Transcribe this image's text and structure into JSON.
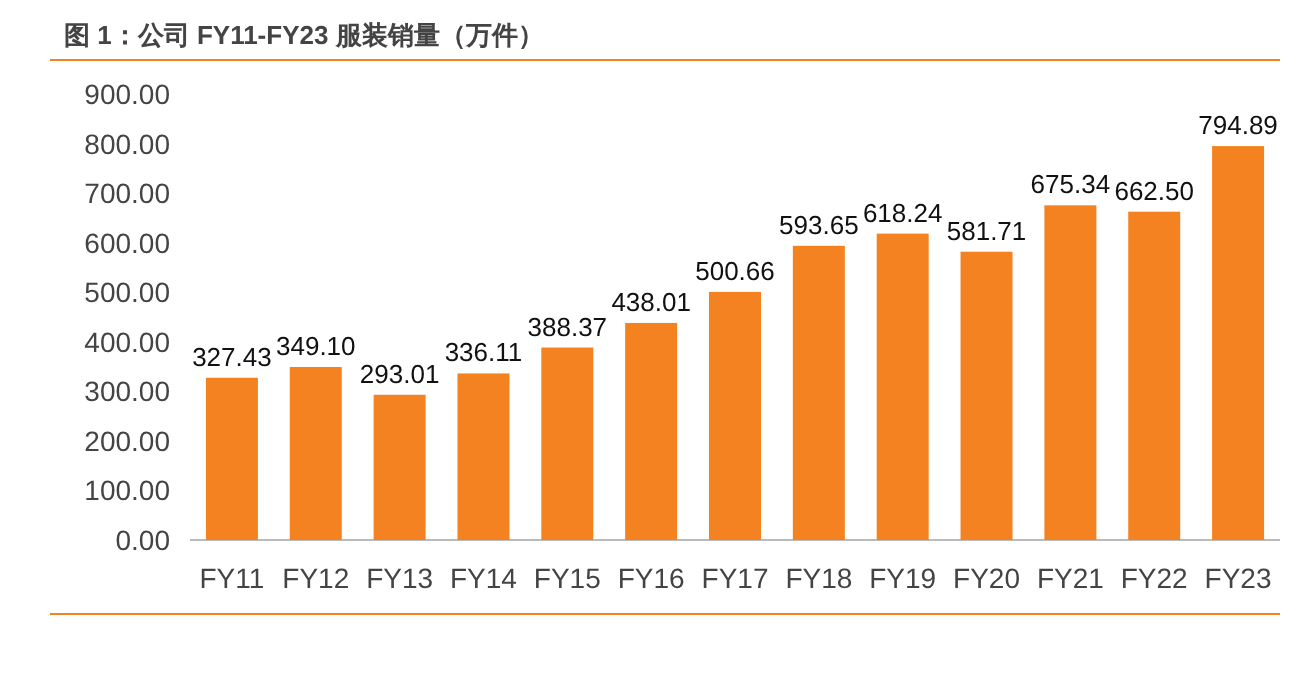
{
  "chart_data": {
    "type": "bar",
    "title": "图 1：公司 FY11-FY23 服装销量（万件）",
    "categories": [
      "FY11",
      "FY12",
      "FY13",
      "FY14",
      "FY15",
      "FY16",
      "FY17",
      "FY18",
      "FY19",
      "FY20",
      "FY21",
      "FY22",
      "FY23"
    ],
    "values": [
      327.43,
      349.1,
      293.01,
      336.11,
      388.37,
      438.01,
      500.66,
      593.65,
      618.24,
      581.71,
      675.34,
      662.5,
      794.89
    ],
    "value_labels": [
      "327.43",
      "349.10",
      "293.01",
      "336.11",
      "388.37",
      "438.01",
      "500.66",
      "593.65",
      "618.24",
      "581.71",
      "675.34",
      "662.50",
      "794.89"
    ],
    "color": "#f58220",
    "ylim": [
      0,
      900
    ],
    "yticks": [
      {
        "value": 0,
        "label": "0.00"
      },
      {
        "value": 100,
        "label": "100.00"
      },
      {
        "value": 200,
        "label": "200.00"
      },
      {
        "value": 300,
        "label": "300.00"
      },
      {
        "value": 400,
        "label": "400.00"
      },
      {
        "value": 500,
        "label": "500.00"
      },
      {
        "value": 600,
        "label": "600.00"
      },
      {
        "value": 700,
        "label": "700.00"
      },
      {
        "value": 800,
        "label": "800.00"
      },
      {
        "value": 900,
        "label": "900.00"
      }
    ],
    "grid": false
  }
}
